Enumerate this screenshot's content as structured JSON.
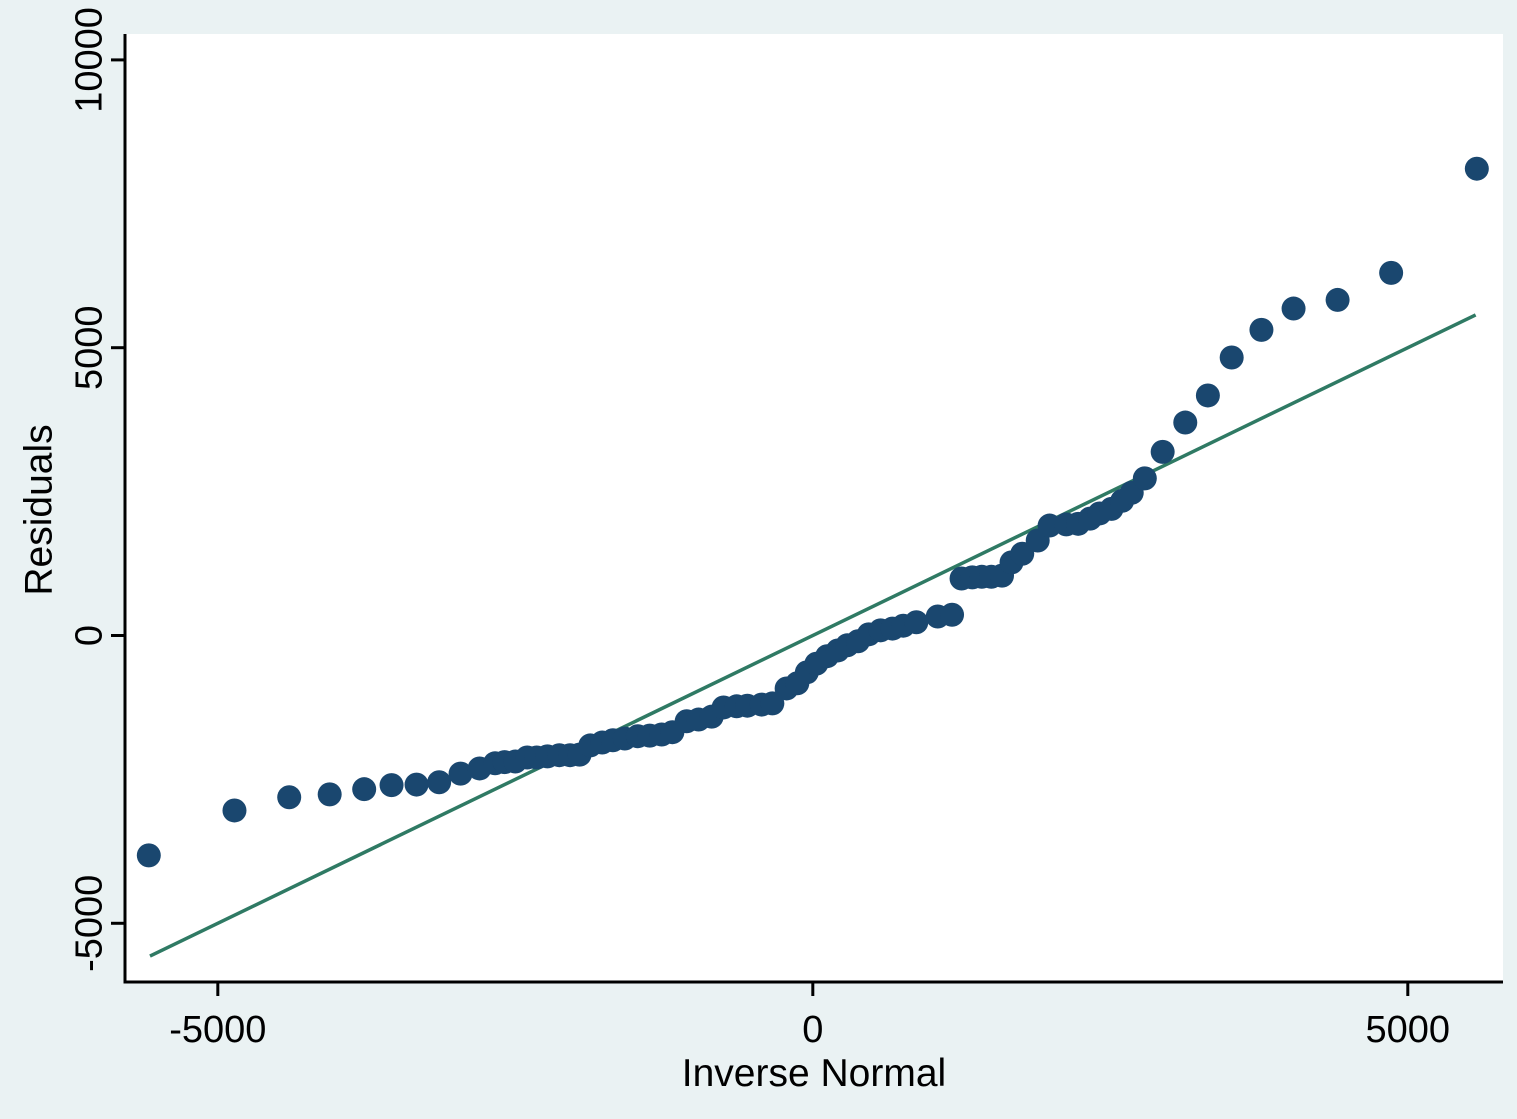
{
  "style": {
    "background": "#eaf2f3",
    "plot_background": "#ffffff",
    "axis_color": "#000000",
    "marker_color": "#1a476f",
    "line_color": "#2f7a64",
    "text_color": "#000000"
  },
  "chart_data": {
    "type": "scatter",
    "title": "",
    "xlabel": "Inverse Normal",
    "ylabel": "Residuals",
    "xlim": [
      -5780,
      5800
    ],
    "ylim": [
      -6020,
      10450
    ],
    "x_ticks": [
      -5000,
      0,
      5000
    ],
    "y_ticks": [
      -5000,
      0,
      5000,
      10000
    ],
    "grid": false,
    "legend": "none",
    "reference_line": {
      "x1": -5570,
      "y1": -5570,
      "x2": 5570,
      "y2": 5570
    },
    "points": [
      [
        -5580,
        -3820
      ],
      [
        -4860,
        -3040
      ],
      [
        -4400,
        -2810
      ],
      [
        -4060,
        -2760
      ],
      [
        -3770,
        -2670
      ],
      [
        -3540,
        -2600
      ],
      [
        -3330,
        -2590
      ],
      [
        -3140,
        -2550
      ],
      [
        -2960,
        -2400
      ],
      [
        -2800,
        -2310
      ],
      [
        -2670,
        -2220
      ],
      [
        -2590,
        -2200
      ],
      [
        -2500,
        -2190
      ],
      [
        -2400,
        -2120
      ],
      [
        -2320,
        -2120
      ],
      [
        -2230,
        -2100
      ],
      [
        -2130,
        -2080
      ],
      [
        -2040,
        -2080
      ],
      [
        -1960,
        -2070
      ],
      [
        -1870,
        -1910
      ],
      [
        -1770,
        -1860
      ],
      [
        -1680,
        -1820
      ],
      [
        -1580,
        -1790
      ],
      [
        -1470,
        -1750
      ],
      [
        -1370,
        -1740
      ],
      [
        -1270,
        -1720
      ],
      [
        -1180,
        -1680
      ],
      [
        -1060,
        -1490
      ],
      [
        -960,
        -1460
      ],
      [
        -850,
        -1410
      ],
      [
        -750,
        -1250
      ],
      [
        -640,
        -1230
      ],
      [
        -550,
        -1220
      ],
      [
        -430,
        -1200
      ],
      [
        -340,
        -1180
      ],
      [
        -220,
        -920
      ],
      [
        -130,
        -830
      ],
      [
        -50,
        -640
      ],
      [
        30,
        -490
      ],
      [
        120,
        -360
      ],
      [
        210,
        -260
      ],
      [
        290,
        -170
      ],
      [
        380,
        -100
      ],
      [
        470,
        20
      ],
      [
        570,
        90
      ],
      [
        670,
        120
      ],
      [
        760,
        170
      ],
      [
        870,
        230
      ],
      [
        1050,
        330
      ],
      [
        1170,
        360
      ],
      [
        1250,
        990
      ],
      [
        1340,
        1010
      ],
      [
        1420,
        1020
      ],
      [
        1500,
        1020
      ],
      [
        1590,
        1040
      ],
      [
        1670,
        1270
      ],
      [
        1760,
        1420
      ],
      [
        1890,
        1650
      ],
      [
        1990,
        1910
      ],
      [
        2130,
        1930
      ],
      [
        2230,
        1940
      ],
      [
        2330,
        2030
      ],
      [
        2410,
        2120
      ],
      [
        2510,
        2200
      ],
      [
        2600,
        2340
      ],
      [
        2680,
        2480
      ],
      [
        2790,
        2730
      ],
      [
        2940,
        3190
      ],
      [
        3130,
        3700
      ],
      [
        3320,
        4170
      ],
      [
        3520,
        4830
      ],
      [
        3770,
        5310
      ],
      [
        4040,
        5680
      ],
      [
        4410,
        5830
      ],
      [
        4860,
        6300
      ],
      [
        5580,
        8110
      ]
    ]
  }
}
